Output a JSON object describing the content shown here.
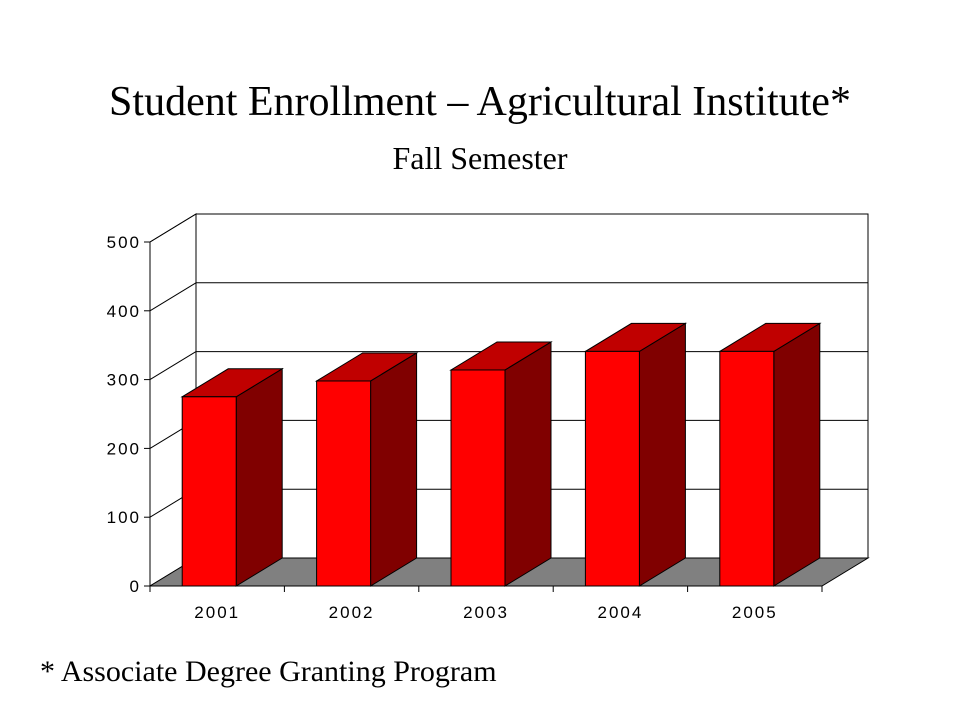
{
  "title": "Student Enrollment – Agricultural Institute*",
  "subtitle": "Fall Semester",
  "footnote": "* Associate Degree Granting Program",
  "colors": {
    "bar_front": "#ff0000",
    "bar_side": "#800000",
    "bar_top": "#c00000",
    "floor": "#808080",
    "background": "#ffffff"
  },
  "chart_data": {
    "type": "bar",
    "style": "3d-column",
    "categories": [
      "2001",
      "2002",
      "2003",
      "2004",
      "2005"
    ],
    "values": [
      275,
      298,
      314,
      341,
      341
    ],
    "xlabel": "",
    "ylabel": "",
    "ylim": [
      0,
      500
    ],
    "yticks": [
      0,
      100,
      200,
      300,
      400,
      500
    ],
    "grid": true,
    "legend": "none"
  }
}
